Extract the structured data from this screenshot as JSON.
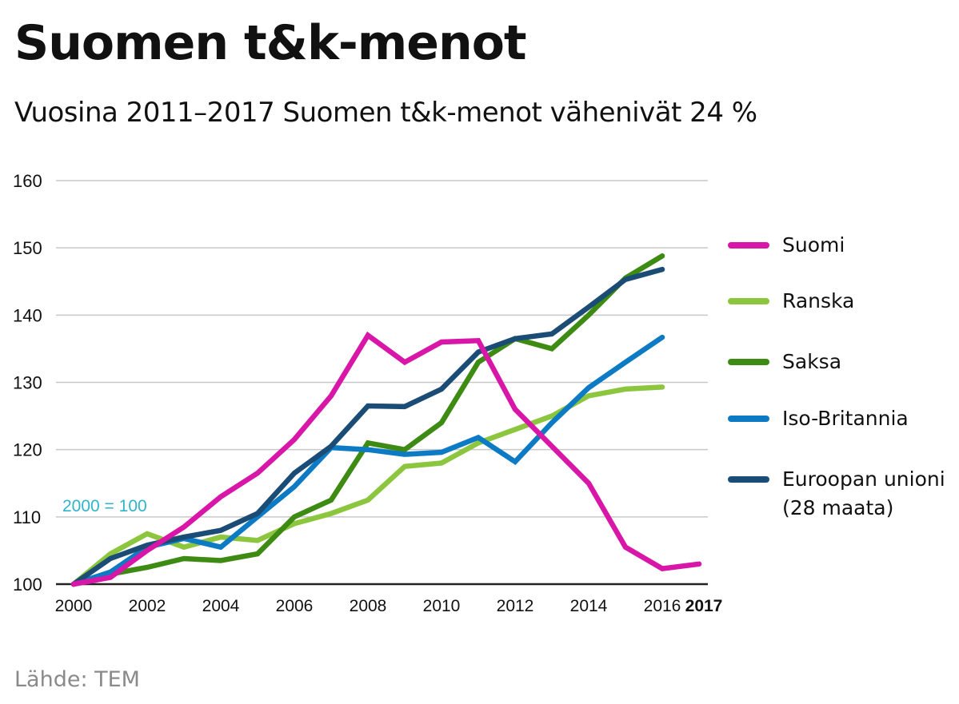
{
  "title": "Suomen t&k-menot",
  "subtitle": "Vuosina 2011–2017 Suomen t&k-menot vähenivät 24 %",
  "source": "Lähde: TEM",
  "chart_data": {
    "type": "line",
    "x": [
      2000,
      2001,
      2002,
      2003,
      2004,
      2005,
      2006,
      2007,
      2008,
      2009,
      2010,
      2011,
      2012,
      2013,
      2014,
      2015,
      2016,
      2017
    ],
    "xlim": [
      2000,
      2017
    ],
    "ylim": [
      100,
      160
    ],
    "yticks": [
      100,
      110,
      120,
      130,
      140,
      150,
      160
    ],
    "xticks": [
      {
        "label": "2000",
        "value": 2000
      },
      {
        "label": "2002",
        "value": 2002
      },
      {
        "label": "2004",
        "value": 2004
      },
      {
        "label": "2006",
        "value": 2006
      },
      {
        "label": "2008",
        "value": 2008
      },
      {
        "label": "2010",
        "value": 2010
      },
      {
        "label": "2012",
        "value": 2012
      },
      {
        "label": "2014",
        "value": 2014
      },
      {
        "label": "2016",
        "value": 2016
      },
      {
        "label": "2017",
        "value": 2017,
        "bold": true
      }
    ],
    "annotation": "2000 = 100",
    "grid": true,
    "series": [
      {
        "name": "Ranska",
        "color": "#8cc63f",
        "values": [
          100,
          104.5,
          107.5,
          105.5,
          107,
          106.5,
          109,
          110.5,
          112.5,
          117.5,
          118,
          121,
          123,
          125,
          128,
          129,
          129.3,
          null
        ]
      },
      {
        "name": "Saksa",
        "color": "#3d8b12",
        "values": [
          100,
          101.5,
          102.5,
          103.8,
          103.5,
          104.5,
          110,
          112.5,
          121,
          120,
          124,
          133,
          136.5,
          135,
          140,
          145.5,
          148.8,
          null
        ]
      },
      {
        "name": "Iso-Britannia",
        "color": "#0d7bc4",
        "values": [
          100,
          101.8,
          105.5,
          106.8,
          105.5,
          110,
          114.5,
          120.3,
          120,
          119.3,
          119.6,
          121.8,
          118.2,
          124,
          129.2,
          133,
          136.7,
          null
        ]
      },
      {
        "name": "Euroopan unioni (28 maata)",
        "color": "#1b4c76",
        "values": [
          100,
          103.8,
          105.8,
          107,
          108,
          110.5,
          116.5,
          120.5,
          126.5,
          126.4,
          129,
          134.5,
          136.5,
          137.2,
          141.2,
          145.3,
          146.8,
          null
        ]
      },
      {
        "name": "Suomi",
        "color": "#d816a8",
        "values": [
          100,
          101,
          105,
          108.5,
          113,
          116.5,
          121.5,
          128,
          137,
          133,
          136,
          136.2,
          126,
          120.5,
          115,
          105.5,
          102.3,
          103
        ]
      }
    ]
  },
  "legend": [
    {
      "label": "Suomi",
      "color": "#d816a8"
    },
    {
      "label": "Ranska",
      "color": "#8cc63f"
    },
    {
      "label": "Saksa",
      "color": "#3d8b12"
    },
    {
      "label": "Iso-Britannia",
      "color": "#0d7bc4"
    },
    {
      "label": "Euroopan unioni",
      "label2": "(28 maata)",
      "color": "#1b4c76"
    }
  ]
}
